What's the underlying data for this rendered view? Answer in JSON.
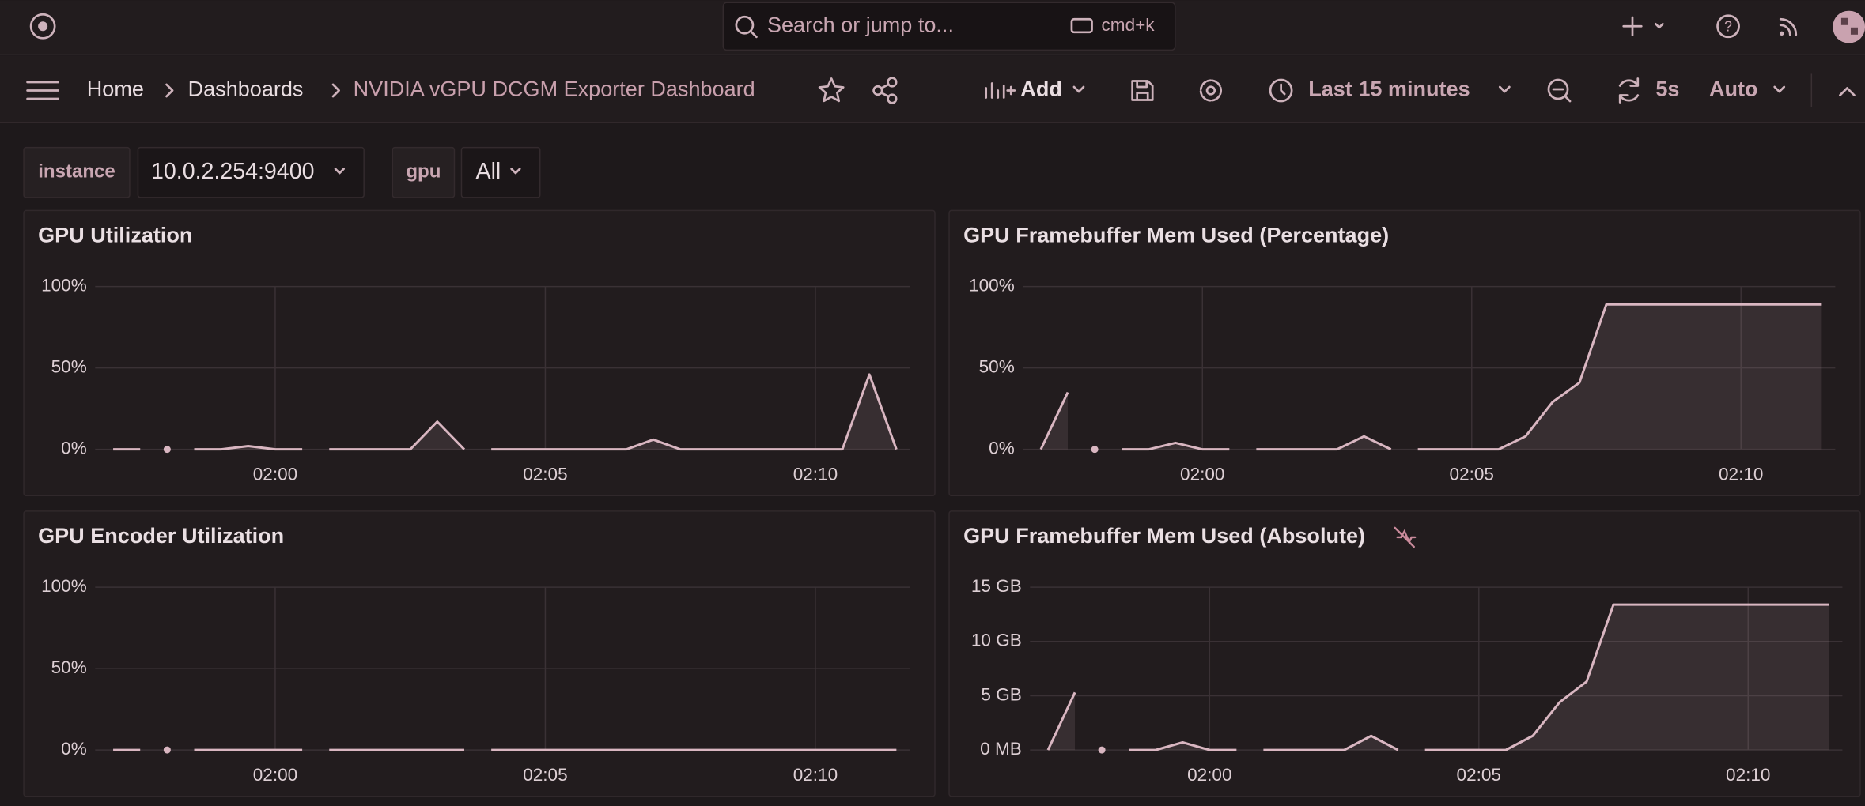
{
  "topbar": {
    "search_placeholder": "Search or jump to...",
    "shortcut": "cmd+k"
  },
  "breadcrumbs": [
    "Home",
    "Dashboards",
    "NVIDIA vGPU DCGM Exporter Dashboard"
  ],
  "toolbar": {
    "add": "Add",
    "time_range": "Last 15 minutes",
    "refresh_interval": "5s",
    "refresh_mode": "Auto"
  },
  "variables": [
    {
      "label": "instance",
      "value": "10.0.2.254:9400"
    },
    {
      "label": "gpu",
      "value": "All"
    }
  ],
  "time_axis": {
    "x": [
      "01:57:00",
      "01:57:30",
      "01:57:45",
      "01:58:00",
      "01:58:15",
      "01:58:30",
      "01:59:00",
      "01:59:30",
      "02:00:00",
      "02:00:30",
      "02:00:45",
      "02:01:00",
      "02:01:30",
      "02:02:00",
      "02:02:30",
      "02:03:00",
      "02:03:30",
      "02:03:45",
      "02:04:00",
      "02:04:30",
      "02:05:00",
      "02:05:30",
      "02:06:00",
      "02:06:30",
      "02:07:00",
      "02:07:30",
      "02:08:00",
      "02:08:30",
      "02:09:00",
      "02:09:30",
      "02:10:00",
      "02:10:30",
      "02:11:00",
      "02:11:30"
    ],
    "xlim": [
      "01:56:40",
      "02:11:45"
    ],
    "xticks": [
      "02:00",
      "02:05",
      "02:10"
    ]
  },
  "panels": [
    {
      "title": "GPU Utilization",
      "type": "line",
      "color": "#d9b6c1",
      "ylim": [
        0,
        100
      ],
      "yticks": [
        {
          "value": 0,
          "label": "0%"
        },
        {
          "value": 50,
          "label": "50%"
        },
        {
          "value": 100,
          "label": "100%"
        }
      ],
      "values": [
        0,
        0,
        null,
        0,
        null,
        0,
        0,
        2,
        0,
        0,
        null,
        0,
        0,
        0,
        0,
        17,
        0,
        null,
        0,
        0,
        0,
        0,
        0,
        0,
        6,
        0,
        0,
        0,
        0,
        0,
        0,
        0,
        46,
        0
      ]
    },
    {
      "title": "GPU Framebuffer Mem Used (Percentage)",
      "type": "line",
      "color": "#d9b6c1",
      "ylim": [
        0,
        100
      ],
      "yticks": [
        {
          "value": 0,
          "label": "0%"
        },
        {
          "value": 50,
          "label": "50%"
        },
        {
          "value": 100,
          "label": "100%"
        }
      ],
      "values": [
        0,
        35,
        null,
        0,
        null,
        0,
        0,
        4,
        0,
        0,
        null,
        0,
        0,
        0,
        0,
        8,
        0,
        null,
        0,
        0,
        0,
        0,
        8,
        29,
        41,
        89,
        89,
        89,
        89,
        89,
        89,
        89,
        89,
        89
      ]
    },
    {
      "title": "GPU Encoder Utilization",
      "type": "line",
      "color": "#d9b6c1",
      "ylim": [
        0,
        100
      ],
      "yticks": [
        {
          "value": 0,
          "label": "0%"
        },
        {
          "value": 50,
          "label": "50%"
        },
        {
          "value": 100,
          "label": "100%"
        }
      ],
      "values": [
        0,
        0,
        null,
        0,
        null,
        0,
        0,
        0,
        0,
        0,
        null,
        0,
        0,
        0,
        0,
        0,
        0,
        null,
        0,
        0,
        0,
        0,
        0,
        0,
        0,
        0,
        0,
        0,
        0,
        0,
        0,
        0,
        0,
        0
      ]
    },
    {
      "title": "GPU Framebuffer Mem Used (Absolute)",
      "type": "line",
      "color": "#d9b6c1",
      "ylim": [
        0,
        15
      ],
      "yticks": [
        {
          "value": 0,
          "label": "0 MB"
        },
        {
          "value": 5,
          "label": "5 GB"
        },
        {
          "value": 10,
          "label": "10 GB"
        },
        {
          "value": 15,
          "label": "15 GB"
        }
      ],
      "values": [
        0,
        5.3,
        null,
        0,
        null,
        0,
        0,
        0.7,
        0,
        0,
        null,
        0,
        0,
        0,
        0,
        1.3,
        0,
        null,
        0,
        0,
        0,
        0,
        1.3,
        4.4,
        6.3,
        13.4,
        13.4,
        13.4,
        13.4,
        13.4,
        13.4,
        13.4,
        13.4,
        13.4
      ]
    }
  ]
}
